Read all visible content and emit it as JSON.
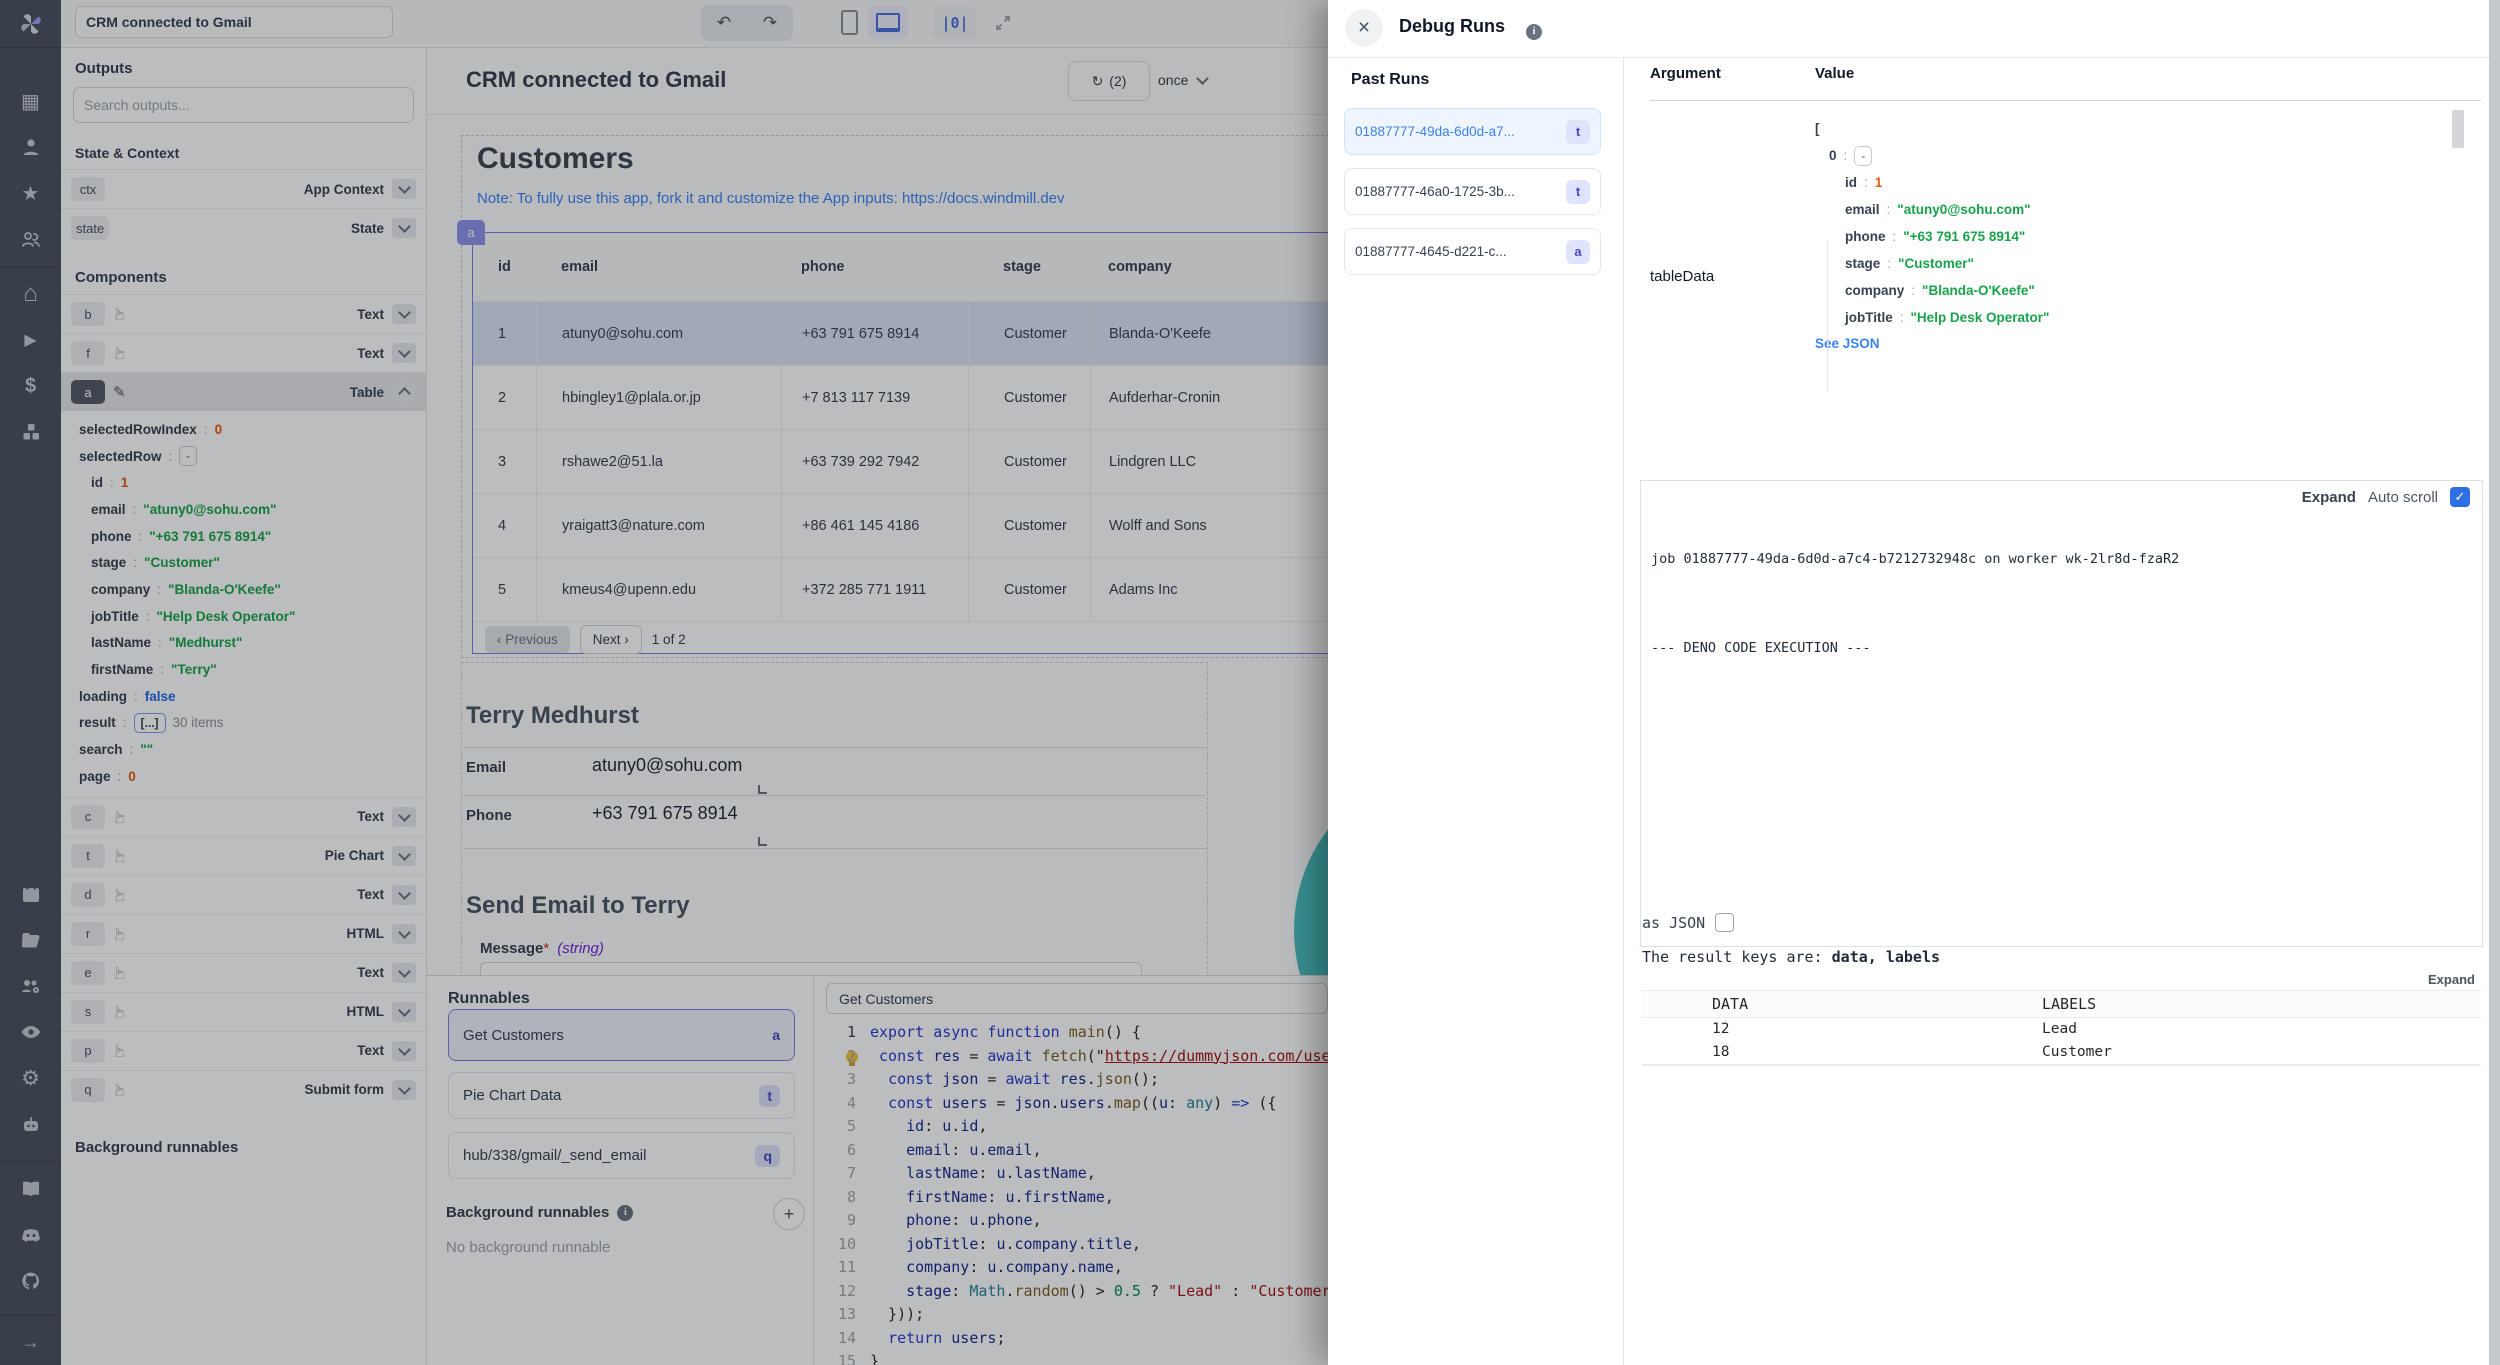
{
  "icons": {
    "undo": "↶",
    "redo": "↷",
    "refresh": "↻",
    "close": "×",
    "check": "✓",
    "info": "i",
    "hand": "☞",
    "pencil": "✎",
    "star": "★",
    "home": "⌂",
    "play": "▶",
    "dollar": "$",
    "building": "▦",
    "gear": "⚙",
    "arrow_right": "→",
    "plus": "+",
    "prev_arrow": "‹",
    "next_arrow": "›",
    "code_mode": "|0|",
    "pie_color": "#4bc0c0"
  },
  "topbar": {
    "app_title": "CRM connected to Gmail"
  },
  "left": {
    "outputs_title": "Outputs",
    "search_placeholder": "Search outputs...",
    "state_context_title": "State & Context",
    "state_rows": [
      {
        "name": "ctx",
        "type": "App Context"
      },
      {
        "name": "state",
        "type": "State"
      }
    ],
    "components_title": "Components",
    "components_before": [
      {
        "id": "b",
        "type": "Text"
      },
      {
        "id": "f",
        "type": "Text"
      }
    ],
    "selected_component": {
      "id": "a",
      "type": "Table"
    },
    "table_state": [
      {
        "key": "selectedRowIndex",
        "value": "0"
      },
      {
        "key": "selectedRow",
        "value": "-"
      },
      {
        "key": "id",
        "value": "1"
      },
      {
        "key": "email",
        "value": "\"atuny0@sohu.com\""
      },
      {
        "key": "phone",
        "value": "\"+63 791 675 8914\""
      },
      {
        "key": "stage",
        "value": "\"Customer\""
      },
      {
        "key": "company",
        "value": "\"Blanda-O'Keefe\""
      },
      {
        "key": "jobTitle",
        "value": "\"Help Desk Operator\""
      },
      {
        "key": "lastName",
        "value": "\"Medhurst\""
      },
      {
        "key": "firstName",
        "value": "\"Terry\""
      },
      {
        "key": "loading",
        "value": "false"
      },
      {
        "key": "result",
        "value": "[...]",
        "suffix": "30 items"
      },
      {
        "key": "search",
        "value": "\"\""
      },
      {
        "key": "page",
        "value": "0"
      }
    ],
    "components_after": [
      {
        "id": "c",
        "type": "Text"
      },
      {
        "id": "t",
        "type": "Pie Chart"
      },
      {
        "id": "d",
        "type": "Text"
      },
      {
        "id": "r",
        "type": "HTML"
      },
      {
        "id": "e",
        "type": "Text"
      },
      {
        "id": "s",
        "type": "HTML"
      },
      {
        "id": "p",
        "type": "Text"
      },
      {
        "id": "q",
        "type": "Submit form"
      }
    ],
    "background_title": "Background runnables"
  },
  "canvas": {
    "title": "CRM connected to Gmail",
    "refresh_count": "(2)",
    "schedule_label": "once",
    "heading": "Customers",
    "note": "Note: To fully use this app, fork it and customize the App inputs: https://docs.windmill.dev",
    "table": {
      "badge": "a",
      "headers": [
        "id",
        "email",
        "phone",
        "stage",
        "company"
      ],
      "rows": [
        {
          "id": "1",
          "email": "atuny0@sohu.com",
          "phone": "+63 791 675 8914",
          "stage": "Customer",
          "company": "Blanda-O'Keefe"
        },
        {
          "id": "2",
          "email": "hbingley1@plala.or.jp",
          "phone": "+7 813 117 7139",
          "stage": "Customer",
          "company": "Aufderhar-Cronin"
        },
        {
          "id": "3",
          "email": "rshawe2@51.la",
          "phone": "+63 739 292 7942",
          "stage": "Customer",
          "company": "Lindgren LLC"
        },
        {
          "id": "4",
          "email": "yraigatt3@nature.com",
          "phone": "+86 461 145 4186",
          "stage": "Customer",
          "company": "Wolff and Sons"
        },
        {
          "id": "5",
          "email": "kmeus4@upenn.edu",
          "phone": "+372 285 771 1911",
          "stage": "Customer",
          "company": "Adams Inc"
        }
      ],
      "prev_label": "‹ Previous",
      "next_label": "Next ›",
      "page_info": "1 of 2"
    },
    "detail": {
      "name": "Terry Medhurst",
      "email_label": "Email",
      "email": "atuny0@sohu.com",
      "phone_label": "Phone",
      "phone": "+63 791 675 8914"
    },
    "send": {
      "heading": "Send Email to Terry",
      "field_label": "Message",
      "required_mark": "*",
      "type_hint": "(string)"
    }
  },
  "runnables": {
    "title": "Runnables",
    "items": [
      {
        "label": "Get Customers",
        "badge": "a"
      },
      {
        "label": "Pie Chart Data",
        "badge": "t"
      },
      {
        "label": "hub/338/gmail/_send_email",
        "badge": "q"
      }
    ],
    "background_title": "Background runnables",
    "background_empty": "No background runnable"
  },
  "editor": {
    "tab": "Get Customers",
    "lines": [
      [
        [
          "k",
          "export "
        ],
        [
          "k",
          "async "
        ],
        [
          "k",
          "function "
        ],
        [
          "f",
          "main"
        ],
        [
          "p",
          "() {"
        ]
      ],
      [
        [
          "p",
          " "
        ],
        [
          "k",
          "const "
        ],
        [
          "v",
          "res"
        ],
        [
          "p",
          " = "
        ],
        [
          "k",
          "await "
        ],
        [
          "f",
          "fetch"
        ],
        [
          "p",
          "(\""
        ],
        [
          "su",
          "https://dummyjson.com/users"
        ]
      ],
      [
        [
          "p",
          "  "
        ],
        [
          "k",
          "const "
        ],
        [
          "v",
          "json"
        ],
        [
          "p",
          " = "
        ],
        [
          "k",
          "await "
        ],
        [
          "v",
          "res"
        ],
        [
          "p",
          "."
        ],
        [
          "f",
          "json"
        ],
        [
          "p",
          "();"
        ]
      ],
      [
        [
          "p",
          "  "
        ],
        [
          "k",
          "const "
        ],
        [
          "v",
          "users"
        ],
        [
          "p",
          " = "
        ],
        [
          "v",
          "json"
        ],
        [
          "p",
          "."
        ],
        [
          "v",
          "users"
        ],
        [
          "p",
          "."
        ],
        [
          "f",
          "map"
        ],
        [
          "p",
          "(("
        ],
        [
          "v",
          "u"
        ],
        [
          "p",
          ": "
        ],
        [
          "t",
          "any"
        ],
        [
          "p",
          ") "
        ],
        [
          "k",
          "=>"
        ],
        [
          "p",
          " ({"
        ]
      ],
      [
        [
          "p",
          "    "
        ],
        [
          "v",
          "id"
        ],
        [
          "p",
          ": "
        ],
        [
          "v",
          "u"
        ],
        [
          "p",
          "."
        ],
        [
          "v",
          "id"
        ],
        [
          "p",
          ","
        ]
      ],
      [
        [
          "p",
          "    "
        ],
        [
          "v",
          "email"
        ],
        [
          "p",
          ": "
        ],
        [
          "v",
          "u"
        ],
        [
          "p",
          "."
        ],
        [
          "v",
          "email"
        ],
        [
          "p",
          ","
        ]
      ],
      [
        [
          "p",
          "    "
        ],
        [
          "v",
          "lastName"
        ],
        [
          "p",
          ": "
        ],
        [
          "v",
          "u"
        ],
        [
          "p",
          "."
        ],
        [
          "v",
          "lastName"
        ],
        [
          "p",
          ","
        ]
      ],
      [
        [
          "p",
          "    "
        ],
        [
          "v",
          "firstName"
        ],
        [
          "p",
          ": "
        ],
        [
          "v",
          "u"
        ],
        [
          "p",
          "."
        ],
        [
          "v",
          "firstName"
        ],
        [
          "p",
          ","
        ]
      ],
      [
        [
          "p",
          "    "
        ],
        [
          "v",
          "phone"
        ],
        [
          "p",
          ": "
        ],
        [
          "v",
          "u"
        ],
        [
          "p",
          "."
        ],
        [
          "v",
          "phone"
        ],
        [
          "p",
          ","
        ]
      ],
      [
        [
          "p",
          "    "
        ],
        [
          "v",
          "jobTitle"
        ],
        [
          "p",
          ": "
        ],
        [
          "v",
          "u"
        ],
        [
          "p",
          "."
        ],
        [
          "v",
          "company"
        ],
        [
          "p",
          "."
        ],
        [
          "v",
          "title"
        ],
        [
          "p",
          ","
        ]
      ],
      [
        [
          "p",
          "    "
        ],
        [
          "v",
          "company"
        ],
        [
          "p",
          ": "
        ],
        [
          "v",
          "u"
        ],
        [
          "p",
          "."
        ],
        [
          "v",
          "company"
        ],
        [
          "p",
          "."
        ],
        [
          "v",
          "name"
        ],
        [
          "p",
          ","
        ]
      ],
      [
        [
          "p",
          "    "
        ],
        [
          "v",
          "stage"
        ],
        [
          "p",
          ": "
        ],
        [
          "t",
          "Math"
        ],
        [
          "p",
          "."
        ],
        [
          "f",
          "random"
        ],
        [
          "p",
          "() > "
        ],
        [
          "n",
          "0.5"
        ],
        [
          "p",
          " ? "
        ],
        [
          "s",
          "\"Lead\""
        ],
        [
          "p",
          " : "
        ],
        [
          "s",
          "\"Customer\""
        ],
        [
          "p",
          ","
        ]
      ],
      [
        [
          "p",
          "  }));"
        ]
      ],
      [
        [
          "p",
          "  "
        ],
        [
          "k",
          "return "
        ],
        [
          "v",
          "users"
        ],
        [
          "p",
          ";"
        ]
      ],
      [
        [
          "p",
          "}"
        ]
      ]
    ]
  },
  "debug": {
    "title": "Debug Runs",
    "past_runs_title": "Past Runs",
    "runs": [
      {
        "id": "01887777-49da-6d0d-a7...",
        "badge": "t"
      },
      {
        "id": "01887777-46a0-1725-3b...",
        "badge": "t"
      },
      {
        "id": "01887777-4645-d221-c...",
        "badge": "a"
      }
    ],
    "arg_header": "Argument",
    "value_header": "Value",
    "arg_name": "tableData",
    "json_open": "[",
    "json_index": "0",
    "json_collapse": "-",
    "props": [
      {
        "key": "id",
        "value": "1"
      },
      {
        "key": "email",
        "value": "\"atuny0@sohu.com\""
      },
      {
        "key": "phone",
        "value": "\"+63 791 675 8914\""
      },
      {
        "key": "stage",
        "value": "\"Customer\""
      },
      {
        "key": "company",
        "value": "\"Blanda-O'Keefe\""
      },
      {
        "key": "jobTitle",
        "value": "\"Help Desk Operator\""
      }
    ],
    "see_json": "See JSON",
    "expand_label": "Expand",
    "autoscroll_label": "Auto scroll",
    "log_line1": "job 01887777-49da-6d0d-a7c4-b7212732948c on worker wk-2lr8d-fzaR2",
    "log_line2": "--- DENO CODE EXECUTION ---",
    "as_json_label": "as JSON",
    "result_keys_prefix": "The result keys are: ",
    "result_keys_bold": "data, labels",
    "expand2_label": "Expand",
    "result_table": {
      "headers": [
        "DATA",
        "LABELS"
      ],
      "rows": [
        [
          "12",
          "Lead"
        ],
        [
          "18",
          "Customer"
        ]
      ]
    }
  }
}
